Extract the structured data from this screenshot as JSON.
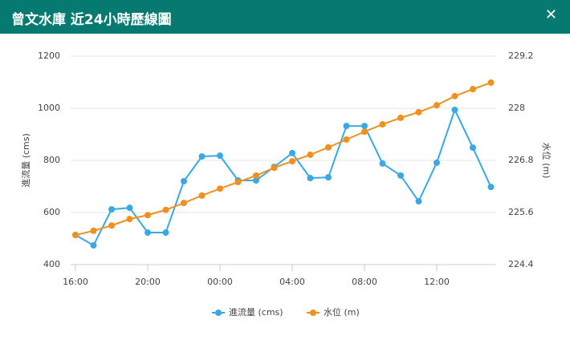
{
  "header": {
    "title": "曾文水庫 近24小時歷線圖",
    "close": "✕"
  },
  "chart_data": {
    "type": "line",
    "categories": [
      "16:00",
      null,
      null,
      null,
      "20:00",
      null,
      null,
      null,
      "00:00",
      null,
      null,
      null,
      "04:00",
      null,
      null,
      null,
      "08:00",
      null,
      null,
      null,
      "12:00",
      null,
      null,
      null
    ],
    "y_label": "進流量 (cms)",
    "y2_label": "水位 (m)",
    "ylim": [
      400,
      1200
    ],
    "yticks": [
      400,
      600,
      800,
      1000,
      1200
    ],
    "y2lim": [
      224.4,
      229.2
    ],
    "y2ticks": [
      224.4,
      225.6,
      226.8,
      228,
      229.2
    ],
    "grid": true,
    "legend": "bottom",
    "series": [
      {
        "name": "進流量 (cms)",
        "color": "#3aa8e4",
        "values": [
          514,
          474,
          612,
          618,
          523,
          523,
          720,
          815,
          818,
          723,
          723,
          775,
          828,
          732,
          735,
          932,
          932,
          788,
          742,
          643,
          791,
          994,
          849,
          698
        ]
      },
      {
        "name": "水位 (m)",
        "color": "#f0901e",
        "axis": "y2",
        "values": [
          225.08,
          225.18,
          225.3,
          225.45,
          225.54,
          225.66,
          225.82,
          225.99,
          226.15,
          226.3,
          226.45,
          226.63,
          226.78,
          226.93,
          227.1,
          227.28,
          227.46,
          227.63,
          227.78,
          227.91,
          228.07,
          228.28,
          228.44,
          228.59
        ]
      }
    ]
  }
}
